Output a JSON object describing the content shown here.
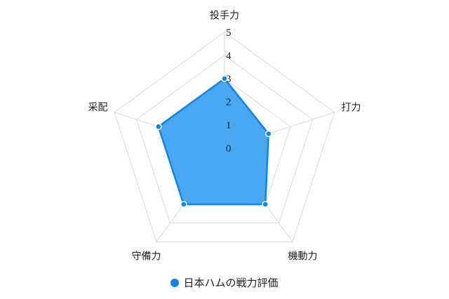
{
  "chart_data": {
    "type": "radar",
    "categories": [
      "投手力",
      "打力",
      "機動力",
      "守備力",
      "采配"
    ],
    "series": [
      {
        "name": "日本ハムの戦力評価",
        "values": [
          3,
          2,
          3,
          3,
          3
        ],
        "color": "#0a84ef",
        "fill": "#4aa8f2"
      }
    ],
    "rlim": [
      0,
      5
    ],
    "ticks": [
      "0",
      "1",
      "2",
      "3",
      "4",
      "5"
    ],
    "grid": true,
    "grid_color": "#d9d9d9",
    "legend_position": "bottom"
  }
}
